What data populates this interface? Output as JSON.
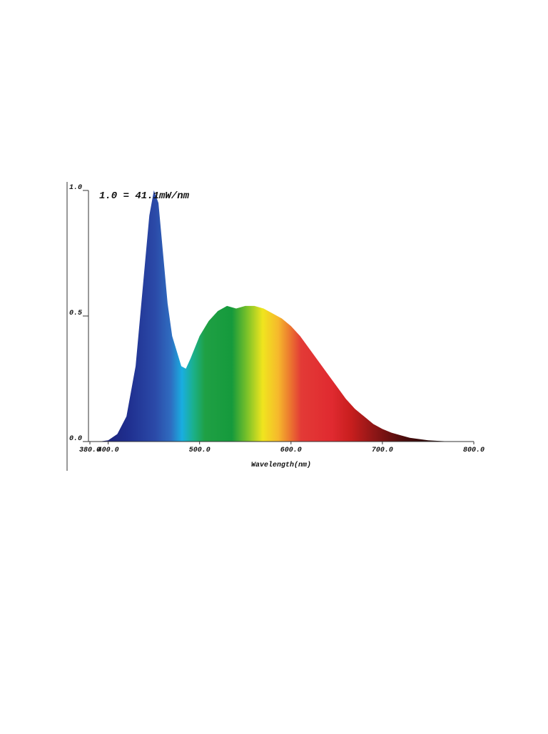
{
  "chart_data": {
    "type": "area",
    "annotation": "1.0 = 41.1mW/nm",
    "x_label": "Wavelength(nm)",
    "x": [
      380,
      390,
      400,
      410,
      420,
      430,
      440,
      445,
      450,
      455,
      460,
      465,
      470,
      475,
      480,
      485,
      490,
      500,
      510,
      520,
      530,
      540,
      550,
      560,
      570,
      580,
      590,
      600,
      610,
      620,
      630,
      640,
      650,
      660,
      670,
      680,
      690,
      700,
      710,
      720,
      730,
      740,
      750,
      760,
      770,
      780
    ],
    "values": [
      0,
      0,
      0.005,
      0.03,
      0.1,
      0.3,
      0.7,
      0.9,
      1.0,
      0.95,
      0.75,
      0.55,
      0.42,
      0.36,
      0.3,
      0.29,
      0.33,
      0.42,
      0.48,
      0.52,
      0.54,
      0.53,
      0.54,
      0.54,
      0.53,
      0.51,
      0.49,
      0.46,
      0.42,
      0.37,
      0.32,
      0.27,
      0.22,
      0.17,
      0.13,
      0.1,
      0.07,
      0.05,
      0.035,
      0.025,
      0.015,
      0.01,
      0.005,
      0.003,
      0.001,
      0
    ],
    "xlim": [
      380,
      800
    ],
    "ylim": [
      0,
      1
    ],
    "xticks": [
      {
        "value": 380,
        "label": "380.0"
      },
      {
        "value": 400,
        "label": "400.0"
      },
      {
        "value": 500,
        "label": "500.0"
      },
      {
        "value": 600,
        "label": "600.0"
      },
      {
        "value": 700,
        "label": "700.0"
      },
      {
        "value": 800,
        "label": "800.0"
      }
    ],
    "yticks": [
      {
        "value": 0,
        "label": "0.0"
      },
      {
        "value": 0.5,
        "label": "0.5"
      },
      {
        "value": 1,
        "label": "1.0"
      }
    ]
  }
}
